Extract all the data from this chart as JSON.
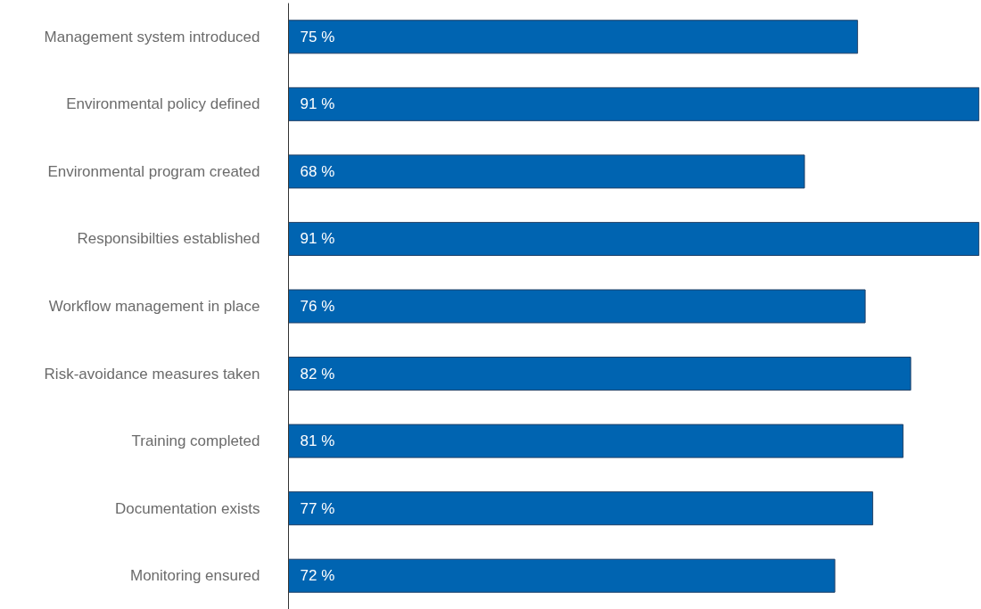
{
  "chart_data": {
    "type": "bar",
    "orientation": "horizontal",
    "categories": [
      "Management system introduced",
      "Environmental policy defined",
      "Environmental program created",
      "Responsibilties established",
      "Workflow management in place",
      "Risk-avoidance measures taken",
      "Training completed",
      "Documentation exists",
      "Monitoring ensured"
    ],
    "values": [
      75,
      91,
      68,
      91,
      76,
      82,
      81,
      77,
      72
    ],
    "value_labels": [
      "75 %",
      "91 %",
      "68 %",
      "91 %",
      "76 %",
      "82 %",
      "81 %",
      "77 %",
      "72 %"
    ],
    "color": "#0064b1",
    "grid": false
  }
}
